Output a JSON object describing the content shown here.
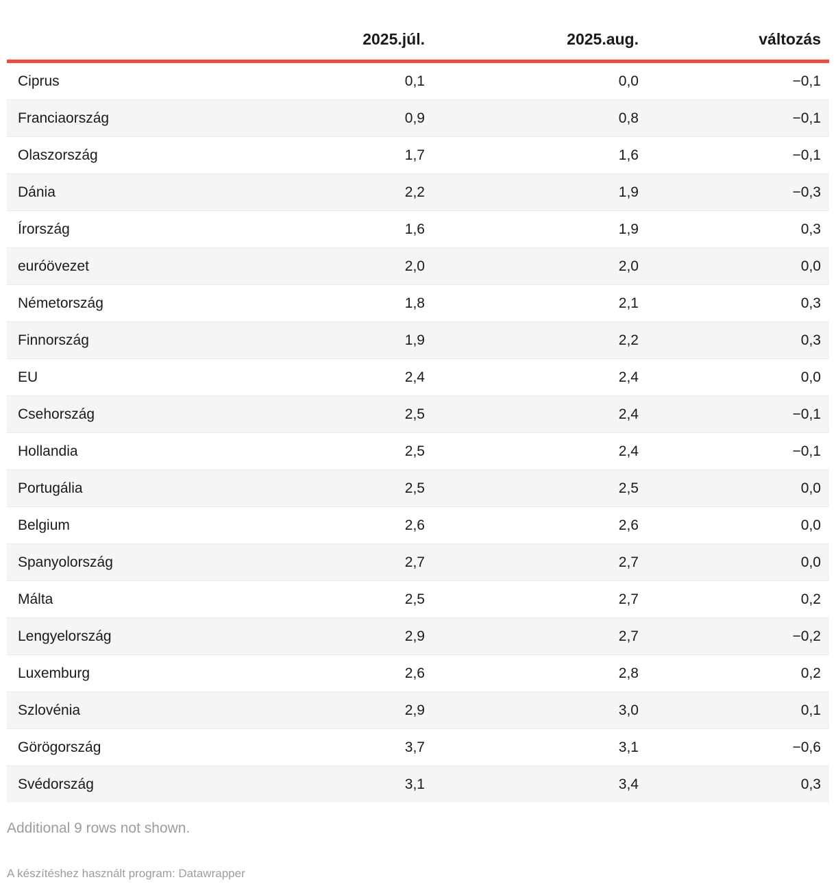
{
  "chart_data": {
    "type": "table",
    "title": "",
    "columns": [
      "",
      "2025.júl.",
      "2025.aug.",
      "változás"
    ],
    "rows": [
      [
        "Ciprus",
        "0,1",
        "0,0",
        "−0,1"
      ],
      [
        "Franciaország",
        "0,9",
        "0,8",
        "−0,1"
      ],
      [
        "Olaszország",
        "1,7",
        "1,6",
        "−0,1"
      ],
      [
        "Dánia",
        "2,2",
        "1,9",
        "−0,3"
      ],
      [
        "Írország",
        "1,6",
        "1,9",
        "0,3"
      ],
      [
        "euróövezet",
        "2,0",
        "2,0",
        "0,0"
      ],
      [
        "Németország",
        "1,8",
        "2,1",
        "0,3"
      ],
      [
        "Finnország",
        "1,9",
        "2,2",
        "0,3"
      ],
      [
        "EU",
        "2,4",
        "2,4",
        "0,0"
      ],
      [
        "Csehország",
        "2,5",
        "2,4",
        "−0,1"
      ],
      [
        "Hollandia",
        "2,5",
        "2,4",
        "−0,1"
      ],
      [
        "Portugália",
        "2,5",
        "2,5",
        "0,0"
      ],
      [
        "Belgium",
        "2,6",
        "2,6",
        "0,0"
      ],
      [
        "Spanyolország",
        "2,7",
        "2,7",
        "0,0"
      ],
      [
        "Málta",
        "2,5",
        "2,7",
        "0,2"
      ],
      [
        "Lengyelország",
        "2,9",
        "2,7",
        "−0,2"
      ],
      [
        "Luxemburg",
        "2,6",
        "2,8",
        "0,2"
      ],
      [
        "Szlovénia",
        "2,9",
        "3,0",
        "0,1"
      ],
      [
        "Görögország",
        "3,7",
        "3,1",
        "−0,6"
      ],
      [
        "Svédország",
        "3,1",
        "3,4",
        "0,3"
      ]
    ],
    "layout_hints": {
      "zebra_striping": true,
      "numeric_columns_right_aligned": true,
      "header_rule_color": "#f4473a"
    }
  },
  "notes": {
    "additional_rows": "Additional 9 rows not shown.",
    "credit": "A készítéshez használt program: Datawrapper"
  },
  "colors": {
    "accent_line": "#f4473a",
    "stripe": "#f5f5f5",
    "row_border": "#e9e9e9",
    "text": "#1a1a1a",
    "muted": "#9d9d9d"
  }
}
